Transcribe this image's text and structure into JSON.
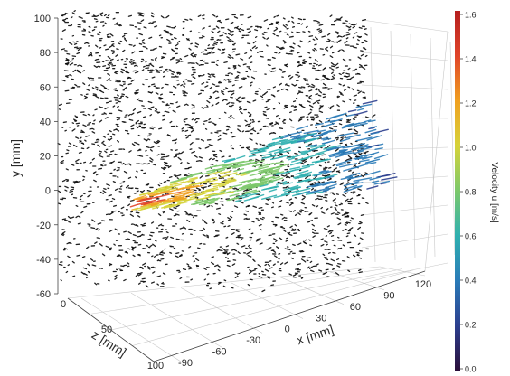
{
  "chart_data": {
    "type": "scatter",
    "subtype": "3d-particle-tracks",
    "title": "",
    "axes": {
      "x": {
        "label": "x [mm]",
        "ticks": [
          "-90",
          "-60",
          "-30",
          "0",
          "30",
          "60",
          "90",
          "120"
        ]
      },
      "y": {
        "label": "y [mm]",
        "ticks": [
          "100",
          "80",
          "60",
          "40",
          "20",
          "0",
          "-20",
          "-40",
          "-60"
        ]
      },
      "z": {
        "label": "z [mm]",
        "ticks": [
          "0",
          "50",
          "100"
        ]
      }
    },
    "colorbar": {
      "label": "Velocity u [m/s]",
      "range": [
        0.0,
        1.6
      ],
      "ticks": [
        "1.6",
        "1.4",
        "1.2",
        "1.0",
        "0.8",
        "0.6",
        "0.4",
        "0.2",
        "0.0"
      ],
      "colormap": [
        "#2b0f3a",
        "#2c3f8f",
        "#2a7bb8",
        "#2fb0b0",
        "#7cc86a",
        "#d6d33a",
        "#f0a020",
        "#e0442a",
        "#b51f1f"
      ]
    },
    "background_particles": {
      "color": "#000000",
      "region_y_mm": [
        -60,
        100
      ],
      "region_x_mm": [
        -90,
        120
      ]
    },
    "jet": {
      "origin_x_mm": -90,
      "origin_y_mm": 0,
      "direction": "+x",
      "max_velocity_m_s": 1.6,
      "far_velocity_m_s": 0.3
    },
    "grid": true
  }
}
